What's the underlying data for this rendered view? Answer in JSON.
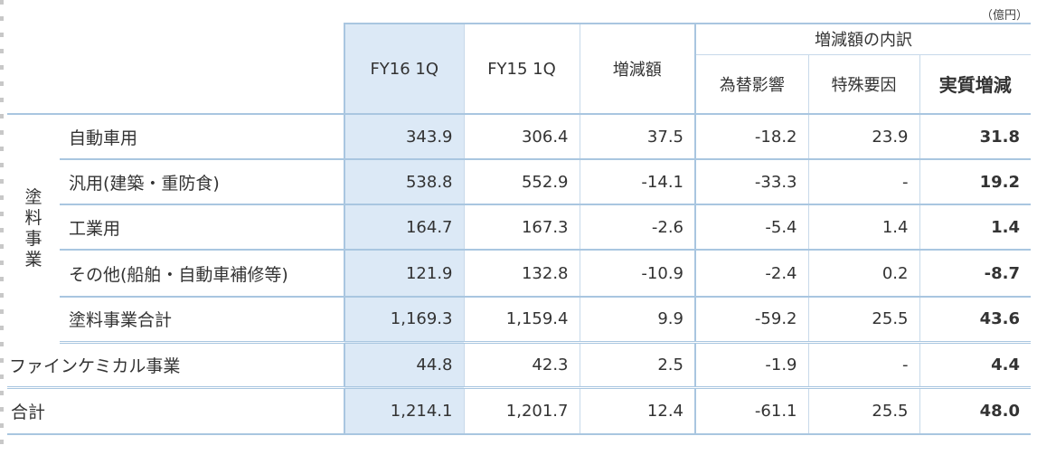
{
  "unit_label": "（億円）",
  "header": {
    "fy16": "FY16 1Q",
    "fy15": "FY15 1Q",
    "change": "増減額",
    "breakdown": "増減額の内訳",
    "fx": "為替影響",
    "special": "特殊要因",
    "real": "実質増減"
  },
  "group_label": [
    "塗",
    "料",
    "事",
    "業"
  ],
  "rows": [
    {
      "label": "自動車用",
      "fy16": "343.9",
      "fy15": "306.4",
      "change": "37.5",
      "fx": "-18.2",
      "special": "23.9",
      "real": "31.8"
    },
    {
      "label": "汎用(建築・重防食)",
      "fy16": "538.8",
      "fy15": "552.9",
      "change": "-14.1",
      "fx": "-33.3",
      "special": "-",
      "real": "19.2"
    },
    {
      "label": "工業用",
      "fy16": "164.7",
      "fy15": "167.3",
      "change": "-2.6",
      "fx": "-5.4",
      "special": "1.4",
      "real": "1.4"
    },
    {
      "label": "その他(船舶・自動車補修等)",
      "fy16": "121.9",
      "fy15": "132.8",
      "change": "-10.9",
      "fx": "-2.4",
      "special": "0.2",
      "real": "-8.7"
    },
    {
      "label": "塗料事業合計",
      "fy16": "1,169.3",
      "fy15": "1,159.4",
      "change": "9.9",
      "fx": "-59.2",
      "special": "25.5",
      "real": "43.6"
    },
    {
      "label": "ファインケミカル事業",
      "fy16": "44.8",
      "fy15": "42.3",
      "change": "2.5",
      "fx": "-1.9",
      "special": "-",
      "real": "4.4"
    },
    {
      "label": "合計",
      "fy16": "1,214.1",
      "fy15": "1,201.7",
      "change": "12.4",
      "fx": "-61.1",
      "special": "25.5",
      "real": "48.0"
    }
  ]
}
